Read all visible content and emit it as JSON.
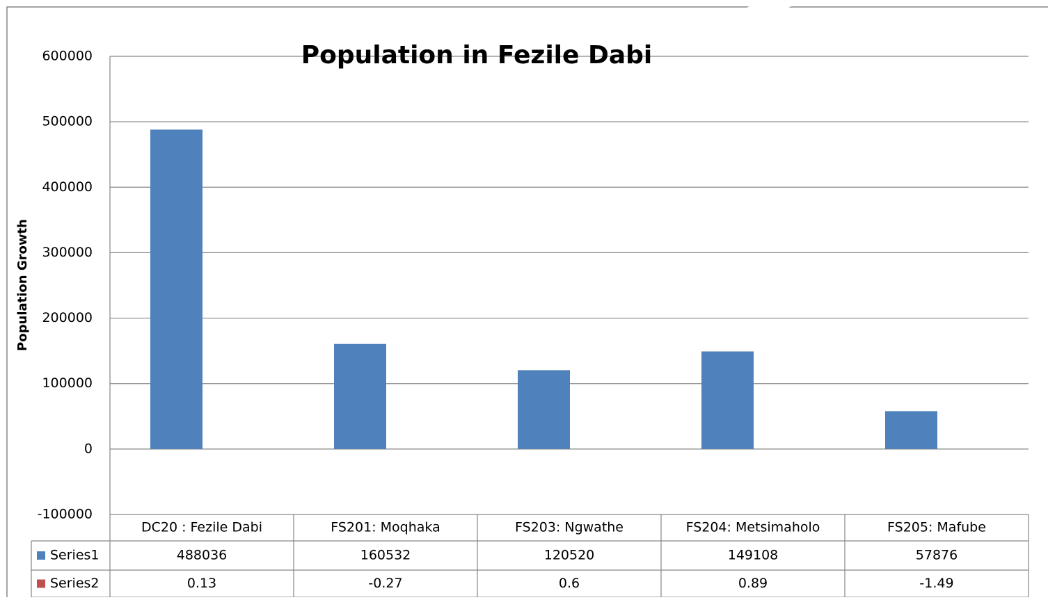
{
  "chart_data": {
    "type": "bar",
    "title": "Population in Fezile Dabi",
    "y_label": "Population Growth",
    "categories": [
      "DC20 : Fezile Dabi",
      "FS201: Moqhaka",
      "FS203: Ngwathe",
      "FS204: Metsimaholo",
      "FS205: Mafube"
    ],
    "series": [
      {
        "name": "Series1",
        "color": "#4f81bd",
        "values": [
          488036,
          160532,
          120520,
          149108,
          57876
        ]
      },
      {
        "name": "Series2",
        "color": "#c0504d",
        "values": [
          0.13,
          -0.27,
          0.6,
          0.89,
          -1.49
        ]
      }
    ],
    "ylim": [
      -100000,
      600000
    ],
    "yticks": [
      -100000,
      0,
      100000,
      200000,
      300000,
      400000,
      500000,
      600000
    ],
    "grid": true
  }
}
